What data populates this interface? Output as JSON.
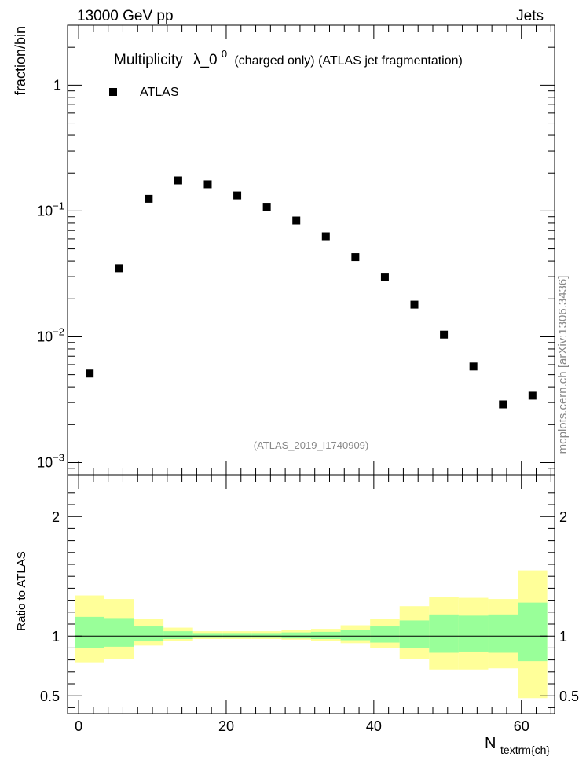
{
  "header": {
    "energy_label": "13000 GeV pp",
    "process_label": "Jets"
  },
  "chart_data": {
    "type": "scatter",
    "title_main": "Multiplicity",
    "title_symbol": "λ_0",
    "title_superscript": "0",
    "title_rest": "(charged only) (ATLAS jet fragmentation)",
    "ylabel": "fraction/bin",
    "xlabel_main": "N",
    "xlabel_sub": "textrm{ch}",
    "ratio_ylabel": "Ratio to ATLAS",
    "analysis_id": "(ATLAS_2019_I1740909)",
    "side_label": "mcplots.cern.ch [arXiv:1306.3436]",
    "legend": {
      "label": "ATLAS",
      "placement": "top-left"
    },
    "ylim": [
      0.0008,
      3.0
    ],
    "yscale": "log",
    "y_ticks": [
      {
        "value": 1,
        "label": "1",
        "exp": ""
      },
      {
        "value": 0.1,
        "label": "10",
        "exp": "−1"
      },
      {
        "value": 0.01,
        "label": "10",
        "exp": "−2"
      },
      {
        "value": 0.001,
        "label": "10",
        "exp": "−3"
      }
    ],
    "xlim": [
      -1.5,
      64.5
    ],
    "x_ticks": [
      0,
      20,
      40,
      60
    ],
    "ratio_ylim": [
      0.35,
      2.35
    ],
    "ratio_ticks": [
      0.5,
      1,
      2
    ],
    "bins": [
      {
        "lo": -0.5,
        "hi": 3.5,
        "x": 1.5,
        "y": 0.0051,
        "ratio_green": [
          0.9,
          1.16
        ],
        "ratio_yellow": [
          0.78,
          1.34
        ]
      },
      {
        "lo": 3.5,
        "hi": 7.5,
        "x": 5.5,
        "y": 0.035,
        "ratio_green": [
          0.91,
          1.15
        ],
        "ratio_yellow": [
          0.81,
          1.31
        ]
      },
      {
        "lo": 7.5,
        "hi": 11.5,
        "x": 9.5,
        "y": 0.125,
        "ratio_green": [
          0.955,
          1.08
        ],
        "ratio_yellow": [
          0.92,
          1.14
        ]
      },
      {
        "lo": 11.5,
        "hi": 15.5,
        "x": 13.5,
        "y": 0.175,
        "ratio_green": [
          0.975,
          1.04
        ],
        "ratio_yellow": [
          0.96,
          1.07
        ]
      },
      {
        "lo": 15.5,
        "hi": 19.5,
        "x": 17.5,
        "y": 0.163,
        "ratio_green": [
          0.985,
          1.025
        ],
        "ratio_yellow": [
          0.975,
          1.04
        ]
      },
      {
        "lo": 19.5,
        "hi": 23.5,
        "x": 21.5,
        "y": 0.133,
        "ratio_green": [
          0.985,
          1.025
        ],
        "ratio_yellow": [
          0.975,
          1.04
        ]
      },
      {
        "lo": 23.5,
        "hi": 27.5,
        "x": 25.5,
        "y": 0.108,
        "ratio_green": [
          0.985,
          1.025
        ],
        "ratio_yellow": [
          0.975,
          1.04
        ]
      },
      {
        "lo": 27.5,
        "hi": 31.5,
        "x": 29.5,
        "y": 0.084,
        "ratio_green": [
          0.98,
          1.03
        ],
        "ratio_yellow": [
          0.97,
          1.05
        ]
      },
      {
        "lo": 31.5,
        "hi": 35.5,
        "x": 33.5,
        "y": 0.063,
        "ratio_green": [
          0.975,
          1.035
        ],
        "ratio_yellow": [
          0.96,
          1.06
        ]
      },
      {
        "lo": 35.5,
        "hi": 39.5,
        "x": 37.5,
        "y": 0.043,
        "ratio_green": [
          0.965,
          1.05
        ],
        "ratio_yellow": [
          0.94,
          1.09
        ]
      },
      {
        "lo": 39.5,
        "hi": 43.5,
        "x": 41.5,
        "y": 0.03,
        "ratio_green": [
          0.945,
          1.08
        ],
        "ratio_yellow": [
          0.9,
          1.14
        ]
      },
      {
        "lo": 43.5,
        "hi": 47.5,
        "x": 45.5,
        "y": 0.018,
        "ratio_green": [
          0.9,
          1.13
        ],
        "ratio_yellow": [
          0.81,
          1.25
        ]
      },
      {
        "lo": 47.5,
        "hi": 51.5,
        "x": 49.5,
        "y": 0.0104,
        "ratio_green": [
          0.86,
          1.18
        ],
        "ratio_yellow": [
          0.72,
          1.33
        ]
      },
      {
        "lo": 51.5,
        "hi": 55.5,
        "x": 53.5,
        "y": 0.0058,
        "ratio_green": [
          0.87,
          1.17
        ],
        "ratio_yellow": [
          0.72,
          1.32
        ]
      },
      {
        "lo": 55.5,
        "hi": 59.5,
        "x": 57.5,
        "y": 0.0029,
        "ratio_green": [
          0.86,
          1.18
        ],
        "ratio_yellow": [
          0.73,
          1.31
        ]
      },
      {
        "lo": 59.5,
        "hi": 63.5,
        "x": 61.5,
        "y": 0.0034,
        "ratio_green": [
          0.79,
          1.28
        ],
        "ratio_yellow": [
          0.48,
          1.55
        ]
      }
    ]
  },
  "colors": {
    "green_band": "#99ff99",
    "yellow_band": "#ffff99",
    "marker": "#000000",
    "gray_text": "#888888"
  }
}
